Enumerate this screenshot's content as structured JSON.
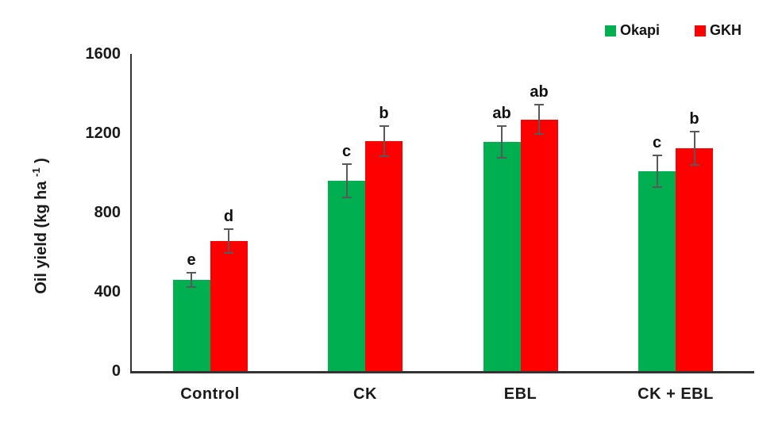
{
  "chart_data": {
    "type": "bar",
    "title": "",
    "ylabel_main": "Oil yield (kg ha ",
    "ylabel_sup": "-1",
    "ylabel_close": " )",
    "xlabel": "",
    "categories": [
      "Control",
      "CK",
      "EBL",
      "CK + EBL"
    ],
    "series": [
      {
        "name": "Okapi",
        "color": "#00B050",
        "values": [
          460,
          960,
          1155,
          1010
        ],
        "errors": [
          35,
          85,
          80,
          80
        ],
        "letters": [
          "e",
          "c",
          "ab",
          "c"
        ]
      },
      {
        "name": "GKH",
        "color": "#FF0000",
        "values": [
          655,
          1160,
          1270,
          1125
        ],
        "errors": [
          60,
          75,
          75,
          85
        ],
        "letters": [
          "d",
          "b",
          "ab",
          "b"
        ]
      }
    ],
    "ylim": [
      0,
      1600
    ],
    "yticks": [
      0,
      400,
      800,
      1200,
      1600
    ],
    "grid": false,
    "legend_position": "top-right",
    "error_bar_color": "#595959",
    "axis_color": "#333333"
  }
}
